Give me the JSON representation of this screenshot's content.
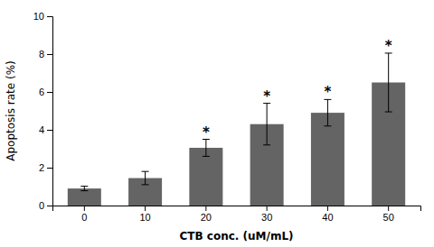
{
  "chart_data": {
    "type": "bar",
    "categories": [
      "0",
      "10",
      "20",
      "30",
      "40",
      "50"
    ],
    "values": [
      0.9,
      1.45,
      3.05,
      4.3,
      4.9,
      6.5
    ],
    "errors": [
      0.12,
      0.35,
      0.45,
      1.1,
      0.7,
      1.55
    ],
    "color": "#646464",
    "xlabel": "CTB conc.  (uM/mL)",
    "ylabel": "Apoptosis rate (%)",
    "ylim": [
      0,
      10
    ],
    "yticks": [
      0,
      2,
      4,
      6,
      8,
      10
    ],
    "grid": false,
    "annotations": [
      {
        "category": "20",
        "text": "*"
      },
      {
        "category": "30",
        "text": "*"
      },
      {
        "category": "40",
        "text": "*"
      },
      {
        "category": "50",
        "text": "*"
      }
    ]
  }
}
